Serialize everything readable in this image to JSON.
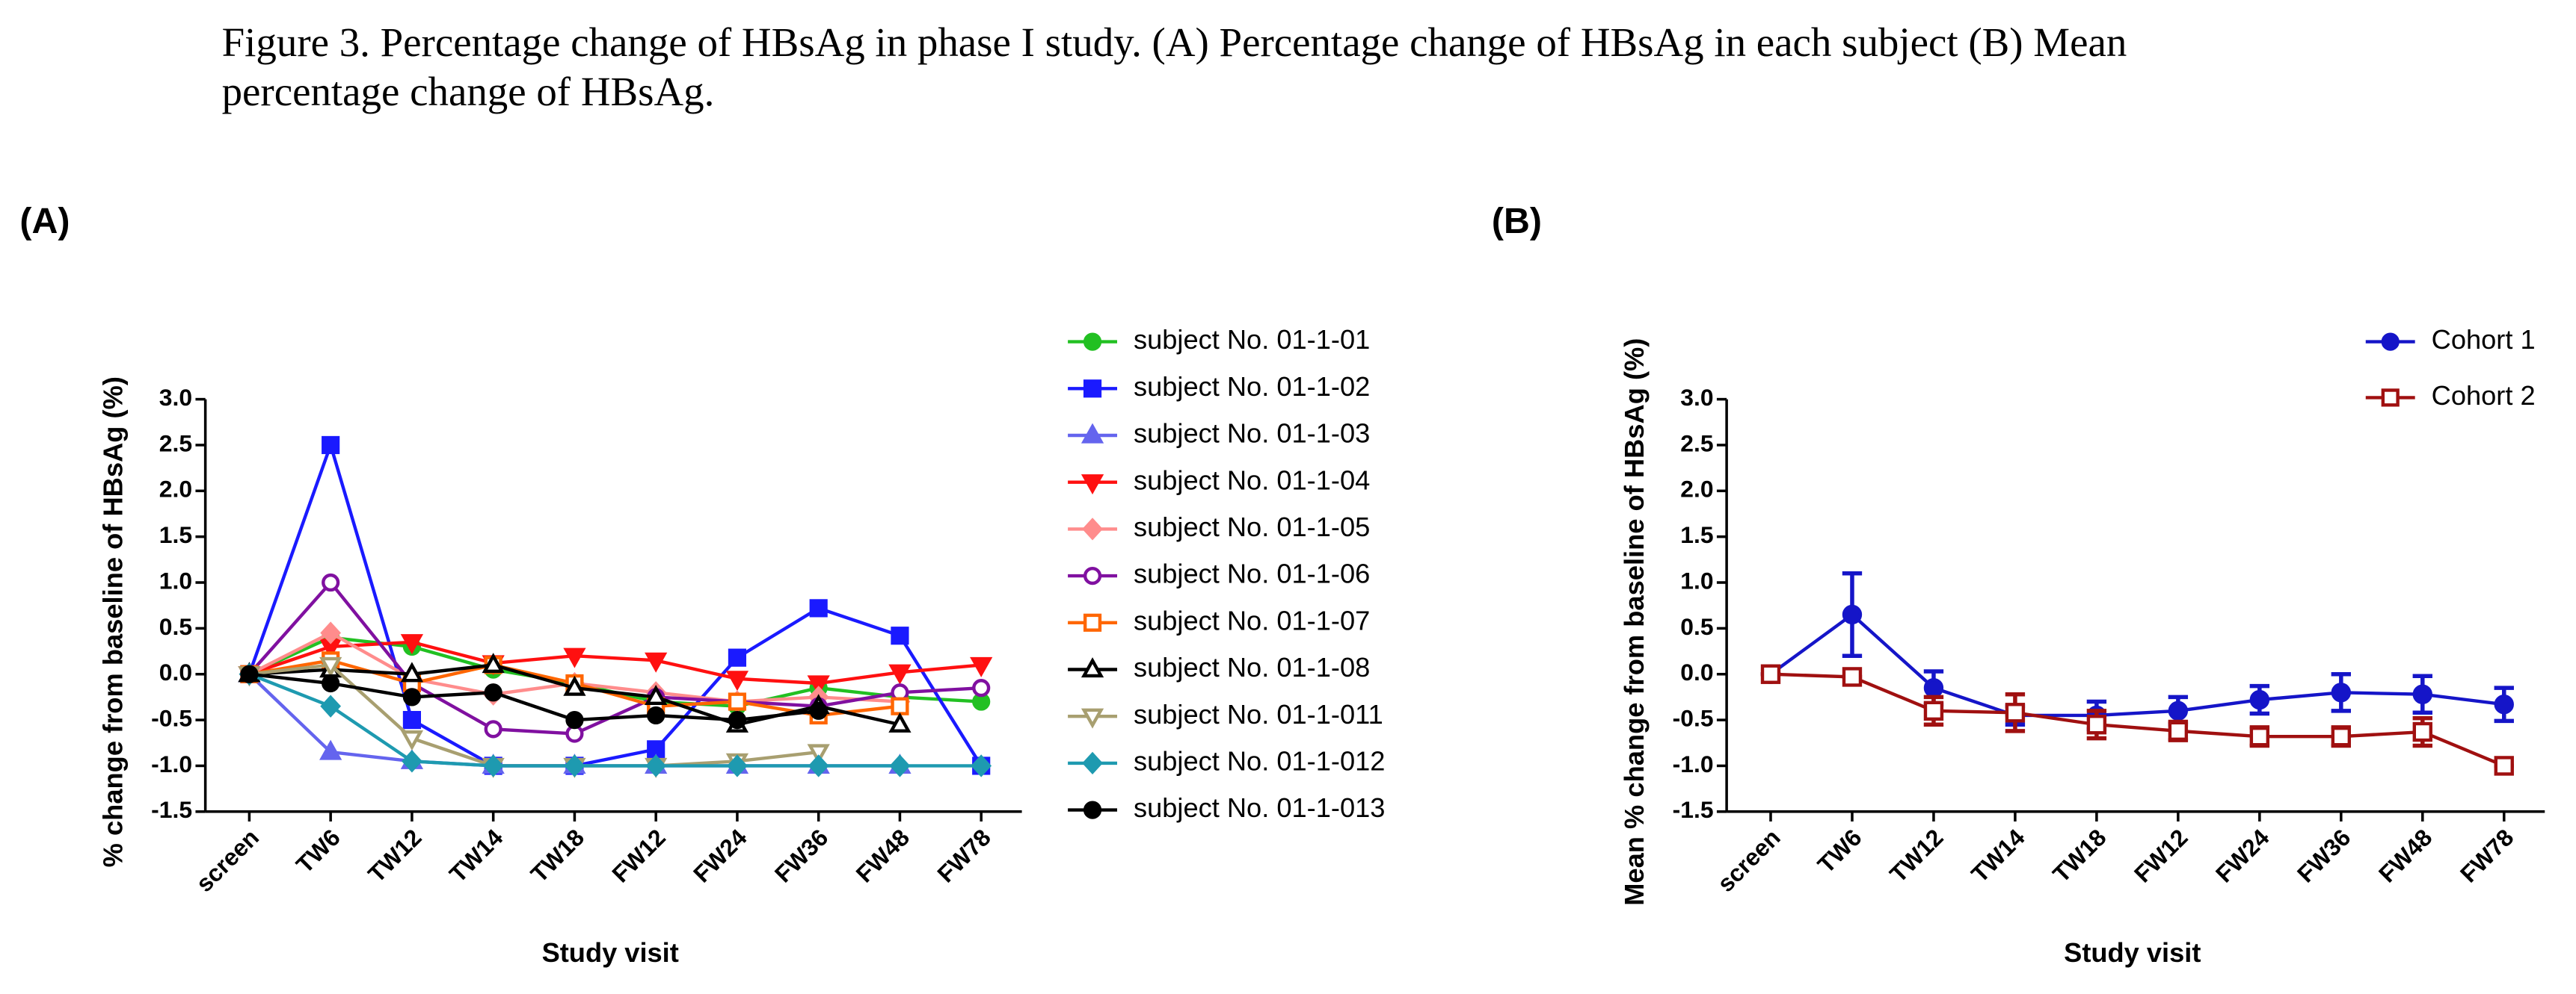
{
  "caption": [
    "Figure 3. Percentage change of HBsAg in phase I study. (A) Percentage change of HBsAg in each subject (B) Mean",
    "percentage change of HBsAg."
  ],
  "chart_data": [
    {
      "type": "line",
      "panel_label": "(A)",
      "xlabel": "Study visit",
      "ylabel": "% change from baseline of HBsAg (%)",
      "categories": [
        "screen",
        "TW6",
        "TW12",
        "TW14",
        "TW18",
        "FW12",
        "FW24",
        "FW36",
        "FW48",
        "FW78"
      ],
      "ylim": [
        -1.5,
        3.0
      ],
      "yticks": [
        -1.5,
        {
          "value": -1,
          "label": "-1.0"
        },
        -0.5,
        {
          "value": 0,
          "label": "0.0"
        },
        0.5,
        {
          "value": 1,
          "label": "1.0"
        },
        1.5,
        {
          "value": 2,
          "label": "2.0"
        },
        2.5,
        {
          "value": 3,
          "label": "3.0"
        }
      ],
      "legend": "right",
      "series": [
        {
          "name": "subject No. 01-1-01",
          "color": "#22c022",
          "marker": "circle",
          "filled": true,
          "values": [
            0,
            0.4,
            0.3,
            0.05,
            -0.1,
            -0.3,
            -0.35,
            -0.15,
            -0.25,
            -0.3
          ]
        },
        {
          "name": "subject No. 01-1-02",
          "color": "#1a1aff",
          "marker": "square",
          "filled": true,
          "values": [
            0,
            2.5,
            -0.5,
            -1.0,
            -1.0,
            -0.82,
            0.18,
            0.72,
            0.42,
            -1.0
          ]
        },
        {
          "name": "subject No. 01-1-03",
          "color": "#6464ee",
          "marker": "triangle",
          "filled": true,
          "values": [
            0,
            -0.85,
            -0.95,
            -1.0,
            -1.0,
            -1.0,
            -1.0,
            -1.0,
            -1.0,
            null
          ]
        },
        {
          "name": "subject No. 01-1-04",
          "color": "#ff1010",
          "marker": "triangle-down",
          "filled": true,
          "values": [
            0,
            0.3,
            0.35,
            0.12,
            0.2,
            0.15,
            -0.05,
            -0.1,
            0.02,
            0.1
          ]
        },
        {
          "name": "subject No. 01-1-05",
          "color": "#ff8c8c",
          "marker": "diamond",
          "filled": true,
          "values": [
            0,
            0.45,
            -0.05,
            -0.22,
            -0.1,
            -0.2,
            -0.3,
            -0.25,
            -0.3,
            null
          ]
        },
        {
          "name": "subject No. 01-1-06",
          "color": "#8010a0",
          "marker": "circle",
          "filled": false,
          "values": [
            0,
            1.0,
            -0.1,
            -0.6,
            -0.65,
            -0.25,
            -0.3,
            -0.35,
            -0.2,
            -0.15
          ]
        },
        {
          "name": "subject No. 01-1-07",
          "color": "#ff6600",
          "marker": "square",
          "filled": false,
          "values": [
            0,
            0.15,
            -0.1,
            0.1,
            -0.1,
            -0.35,
            -0.3,
            -0.45,
            -0.35,
            null
          ]
        },
        {
          "name": "subject No. 01-1-08",
          "color": "#000000",
          "marker": "triangle",
          "filled": false,
          "values": [
            0,
            0.05,
            0.0,
            0.1,
            -0.15,
            -0.25,
            -0.55,
            -0.35,
            -0.55,
            null
          ]
        },
        {
          "name": "subject No. 01-1-011",
          "color": "#a89f70",
          "marker": "triangle-down",
          "filled": false,
          "values": [
            0,
            0.1,
            -0.7,
            -1.0,
            -1.0,
            -1.0,
            -0.95,
            -0.85,
            null,
            null
          ]
        },
        {
          "name": "subject No. 01-1-012",
          "color": "#1e9ab0",
          "marker": "diamond",
          "filled": true,
          "values": [
            0,
            -0.35,
            -0.95,
            -1.0,
            -1.0,
            -1.0,
            -1.0,
            -1.0,
            -1.0,
            -1.0
          ]
        },
        {
          "name": "subject No. 01-1-013",
          "color": "#000000",
          "marker": "circle",
          "filled": true,
          "values": [
            0,
            -0.1,
            -0.25,
            -0.2,
            -0.5,
            -0.45,
            -0.5,
            -0.4,
            null,
            null
          ]
        }
      ]
    },
    {
      "type": "errorline",
      "panel_label": "(B)",
      "xlabel": "Study visit",
      "ylabel": "Mean % change from baseline of HBsAg (%)",
      "categories": [
        "screen",
        "TW6",
        "TW12",
        "TW14",
        "TW18",
        "FW12",
        "FW24",
        "FW36",
        "FW48",
        "FW78"
      ],
      "ylim": [
        -1.5,
        3.0
      ],
      "yticks": [
        -1.5,
        {
          "value": -1,
          "label": "-1.0"
        },
        -0.5,
        {
          "value": 0,
          "label": "0.0"
        },
        0.5,
        {
          "value": 1,
          "label": "1.0"
        },
        1.5,
        {
          "value": 2,
          "label": "2.0"
        },
        2.5,
        {
          "value": 3,
          "label": "3.0"
        }
      ],
      "legend": "upper right",
      "series": [
        {
          "name": "Cohort 1",
          "color": "#1515c8",
          "marker": "circle",
          "filled": true,
          "values": [
            0,
            0.65,
            -0.15,
            -0.45,
            -0.45,
            -0.4,
            -0.28,
            -0.2,
            -0.22,
            -0.33
          ],
          "errors": [
            0,
            0.45,
            0.18,
            0.1,
            0.15,
            0.15,
            0.15,
            0.2,
            0.2,
            0.18
          ]
        },
        {
          "name": "Cohort 2",
          "color": "#a01010",
          "marker": "square",
          "filled": false,
          "values": [
            0,
            -0.03,
            -0.4,
            -0.42,
            -0.55,
            -0.62,
            -0.68,
            -0.68,
            -0.63,
            -1.0
          ],
          "errors": [
            0,
            0,
            0.15,
            0.2,
            0.15,
            0.1,
            0.1,
            0.1,
            0.15,
            0
          ]
        }
      ]
    }
  ]
}
